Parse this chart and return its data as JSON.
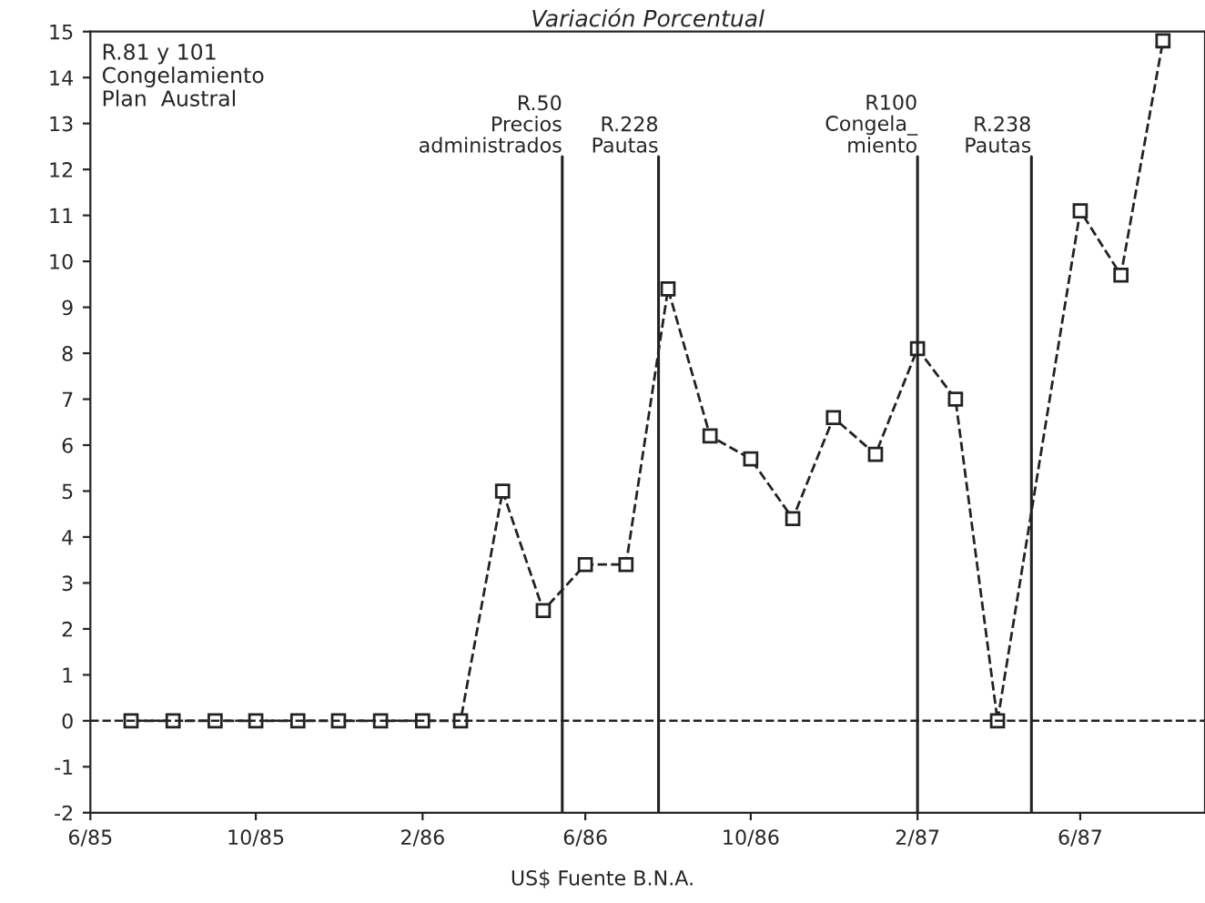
{
  "chart_data": {
    "type": "line",
    "title": "Variación Porcentual",
    "x": [
      "1985-07",
      "1985-08",
      "1985-09",
      "1985-10",
      "1985-11",
      "1985-12",
      "1986-01",
      "1986-02",
      "1986-03",
      "1986-04",
      "1986-05",
      "1986-06",
      "1986-07",
      "1986-08",
      "1986-09",
      "1986-10",
      "1986-11",
      "1986-12",
      "1987-01",
      "1987-02",
      "1987-03",
      "1987-04",
      "1987-06",
      "1987-07",
      "1987-08"
    ],
    "series": [
      {
        "color": "#222222",
        "values": [
          0,
          0,
          0,
          0,
          0,
          0,
          0,
          0,
          0,
          5,
          2.4,
          3.4,
          3.4,
          9.4,
          6.2,
          5.7,
          4.4,
          6.6,
          5.8,
          8.1,
          7.0,
          0,
          11.1,
          9.7,
          14.8
        ]
      }
    ],
    "marker": "square",
    "line_style": "dashed",
    "grid": false,
    "xlim": [
      "1985-06",
      "1987-09"
    ],
    "xticks": [
      {
        "value": "1985-06",
        "label": "6/85"
      },
      {
        "value": "1985-10",
        "label": "10/85"
      },
      {
        "value": "1986-02",
        "label": "2/86"
      },
      {
        "value": "1986-06",
        "label": "6/86"
      },
      {
        "value": "1986-10",
        "label": "10/86"
      },
      {
        "value": "1987-02",
        "label": "2/87"
      },
      {
        "value": "1987-06",
        "label": "6/87"
      }
    ],
    "ylim": [
      -2,
      15
    ],
    "yticks": [
      -2,
      -1,
      0,
      1,
      2,
      3,
      4,
      5,
      6,
      7,
      8,
      9,
      10,
      11,
      12,
      13,
      14,
      15
    ],
    "ref_lines": [
      {
        "axis": "y",
        "value": 0,
        "line_style": "dashed"
      },
      {
        "axis": "x",
        "value": "1986-05-15",
        "label": "R.50\nPrecios\nadministrados"
      },
      {
        "axis": "x",
        "value": "1986-07-25",
        "label": "R.228\nPautas"
      },
      {
        "axis": "x",
        "value": "1987-02-01",
        "label": "R100\nCongela_\nmiento"
      },
      {
        "axis": "x",
        "value": "1987-04-26",
        "label": "R.238\nPautas"
      }
    ],
    "annotations": [
      "R.81 y 101\nCongelamiento\nPlan  Austral",
      "US$ Fuente B.N.A."
    ]
  }
}
